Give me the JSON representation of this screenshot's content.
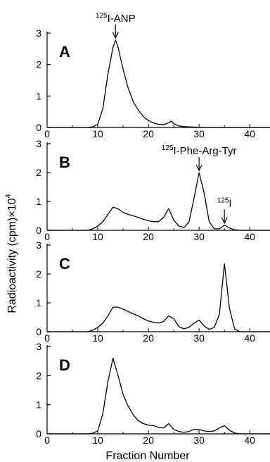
{
  "chart_data": {
    "type": "line",
    "y_axis_label": "Radioactivity (cpm)×10",
    "y_axis_label_exponent": "4",
    "x_axis_label": "Fraction Number",
    "xlim": [
      0,
      44
    ],
    "x_ticks": [
      "0",
      "10",
      "20",
      "30",
      "40"
    ],
    "line_color": "#000000",
    "panels": [
      {
        "label": "A",
        "ylim": [
          0,
          3
        ],
        "y_ticks": [
          "0",
          "1",
          "2",
          "3"
        ],
        "annotations": [
          {
            "text": "I-ANP",
            "sup": "125",
            "x": 13.5,
            "y": 2.78
          }
        ],
        "x": [
          0,
          8,
          9,
          10,
          11,
          12,
          13,
          13.5,
          14,
          15,
          16,
          17,
          18,
          19,
          20,
          21,
          22,
          23,
          24,
          24.5,
          25,
          26,
          27,
          28,
          30,
          32,
          35,
          38,
          44
        ],
        "y": [
          0,
          0,
          0.02,
          0.1,
          0.6,
          1.7,
          2.55,
          2.78,
          2.55,
          1.85,
          1.25,
          0.82,
          0.55,
          0.35,
          0.22,
          0.14,
          0.1,
          0.09,
          0.15,
          0.2,
          0.12,
          0.05,
          0.03,
          0.02,
          0.01,
          0,
          0,
          0,
          0
        ]
      },
      {
        "label": "B",
        "ylim": [
          0,
          3
        ],
        "y_ticks": [
          "0",
          "1",
          "2",
          "3"
        ],
        "annotations": [
          {
            "text": "I-Phe-Arg-Tyr",
            "sup": "125",
            "x": 30,
            "y": 2.0
          },
          {
            "text": "I",
            "sup": "125",
            "x": 35,
            "y": 0.18
          }
        ],
        "x": [
          0,
          8,
          9,
          10,
          11,
          12,
          13,
          14,
          15,
          16,
          17,
          18,
          19,
          20,
          21,
          22,
          23,
          24,
          25,
          26,
          27,
          28,
          29,
          30,
          31,
          32,
          33,
          34,
          35,
          36,
          37,
          38,
          44
        ],
        "y": [
          0,
          0,
          0.05,
          0.15,
          0.3,
          0.55,
          0.8,
          0.75,
          0.62,
          0.55,
          0.5,
          0.45,
          0.38,
          0.33,
          0.3,
          0.3,
          0.45,
          0.75,
          0.35,
          0.15,
          0.1,
          0.28,
          1.1,
          2.0,
          1.3,
          0.3,
          0.05,
          0.05,
          0.18,
          0.08,
          0.02,
          0,
          0
        ]
      },
      {
        "label": "C",
        "ylim": [
          0,
          3
        ],
        "y_ticks": [
          "0",
          "1",
          "2",
          "3"
        ],
        "annotations": [],
        "x": [
          0,
          8,
          9,
          10,
          11,
          12,
          13,
          14,
          15,
          16,
          17,
          18,
          19,
          20,
          21,
          22,
          23,
          24,
          25,
          26,
          27,
          28,
          29,
          30,
          31,
          32,
          33,
          34,
          35,
          36,
          37,
          38,
          44
        ],
        "y": [
          0,
          0,
          0.05,
          0.15,
          0.3,
          0.55,
          0.85,
          0.85,
          0.78,
          0.7,
          0.62,
          0.55,
          0.45,
          0.37,
          0.33,
          0.3,
          0.35,
          0.55,
          0.45,
          0.18,
          0.1,
          0.15,
          0.3,
          0.4,
          0.2,
          0.08,
          0.15,
          0.6,
          2.35,
          0.8,
          0.1,
          0,
          0
        ]
      },
      {
        "label": "D",
        "ylim": [
          0,
          3
        ],
        "y_ticks": [
          "0",
          "1",
          "2",
          "3"
        ],
        "annotations": [],
        "x": [
          0,
          8,
          9,
          10,
          11,
          12,
          13,
          14,
          15,
          16,
          17,
          18,
          19,
          20,
          21,
          22,
          23,
          24,
          25,
          26,
          27,
          28,
          29,
          30,
          31,
          32,
          33,
          34,
          35,
          36,
          37,
          38,
          44
        ],
        "y": [
          0,
          0,
          0.02,
          0.1,
          0.7,
          1.8,
          2.6,
          2.0,
          1.35,
          0.95,
          0.65,
          0.45,
          0.35,
          0.3,
          0.28,
          0.22,
          0.2,
          0.35,
          0.15,
          0.08,
          0.05,
          0.08,
          0.15,
          0.15,
          0.1,
          0.08,
          0.1,
          0.2,
          0.28,
          0.12,
          0.03,
          0,
          0
        ]
      }
    ]
  }
}
